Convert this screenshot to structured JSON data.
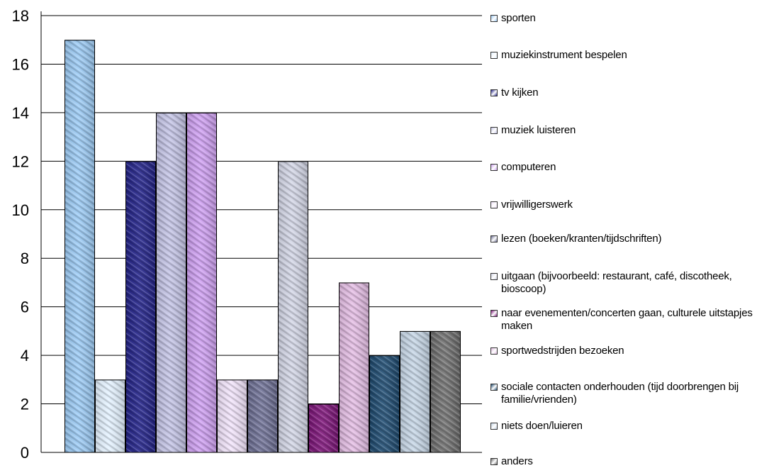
{
  "chart_data": {
    "type": "bar",
    "title": "",
    "xlabel": "",
    "ylabel": "",
    "ylim": [
      0,
      18
    ],
    "yticks": [
      "0",
      "2",
      "4",
      "6",
      "8",
      "10",
      "12",
      "14",
      "16",
      "18"
    ],
    "grid": true,
    "legend_position": "right",
    "series": [
      {
        "name": "sporten",
        "value": 17,
        "color": "#9CCBF5"
      },
      {
        "name": "muziekinstrument bespelen",
        "value": 3,
        "color": "#E4F2FF"
      },
      {
        "name": "tv kijken",
        "value": 12,
        "color": "#23238A"
      },
      {
        "name": "muziek luisteren",
        "value": 14,
        "color": "#C4C4E6"
      },
      {
        "name": "computeren",
        "value": 14,
        "color": "#CFA0F2"
      },
      {
        "name": "vrijwilligerswerk",
        "value": 3,
        "color": "#F2E4FB"
      },
      {
        "name": "lezen (boeken/kranten/tijdschriften)",
        "value": 3,
        "color": "#6F7196"
      },
      {
        "name": "uitgaan (bijvoorbeeld: restaurant, café, discotheek, bioscoop)",
        "value": 12,
        "color": "#D3D6E6"
      },
      {
        "name": "naar evenementen/concerten gaan, culturele uitstapjes maken",
        "value": 2,
        "color": "#7E157A"
      },
      {
        "name": "sportwedstrijden bezoeken",
        "value": 7,
        "color": "#E4BDE4"
      },
      {
        "name": "sociale contacten onderhouden (tijd doorbrengen bij familie/vrienden)",
        "value": 4,
        "color": "#1F4C72"
      },
      {
        "name": "niets doen/luieren",
        "value": 5,
        "color": "#C6D6E6"
      },
      {
        "name": "anders",
        "value": 5,
        "color": "#707070"
      }
    ]
  }
}
